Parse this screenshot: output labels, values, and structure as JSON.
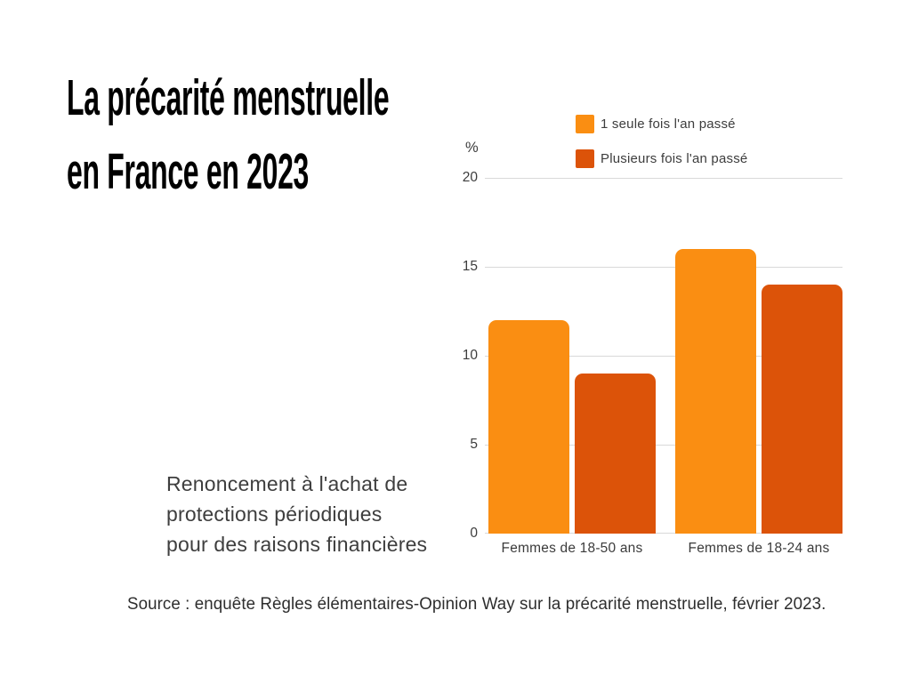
{
  "title": {
    "line1": "La précarité menstruelle",
    "line2": "en France en 2023"
  },
  "caption": {
    "line1": "Renoncement à l'achat de",
    "line2": "protections périodiques",
    "line3": "pour des raisons financières"
  },
  "source": "Source : enquête Règles élémentaires-Opinion Way sur la précarité menstruelle, février 2023.",
  "chart_data": {
    "type": "bar",
    "title": "",
    "unit_label": "%",
    "categories": [
      "Femmes de 18-50 ans",
      "Femmes de 18-24 ans"
    ],
    "series": [
      {
        "name": "1 seule fois l'an passé",
        "color": "#FA8E12",
        "values": [
          12,
          16
        ]
      },
      {
        "name": "Plusieurs fois l'an passé",
        "color": "#DC5309",
        "values": [
          9,
          14
        ]
      }
    ],
    "ylim": [
      0,
      20
    ],
    "yticks": [
      0,
      5,
      10,
      15,
      20
    ],
    "grid": true,
    "gridline_color": "#d9d9d9",
    "legend_position": "top-right"
  }
}
